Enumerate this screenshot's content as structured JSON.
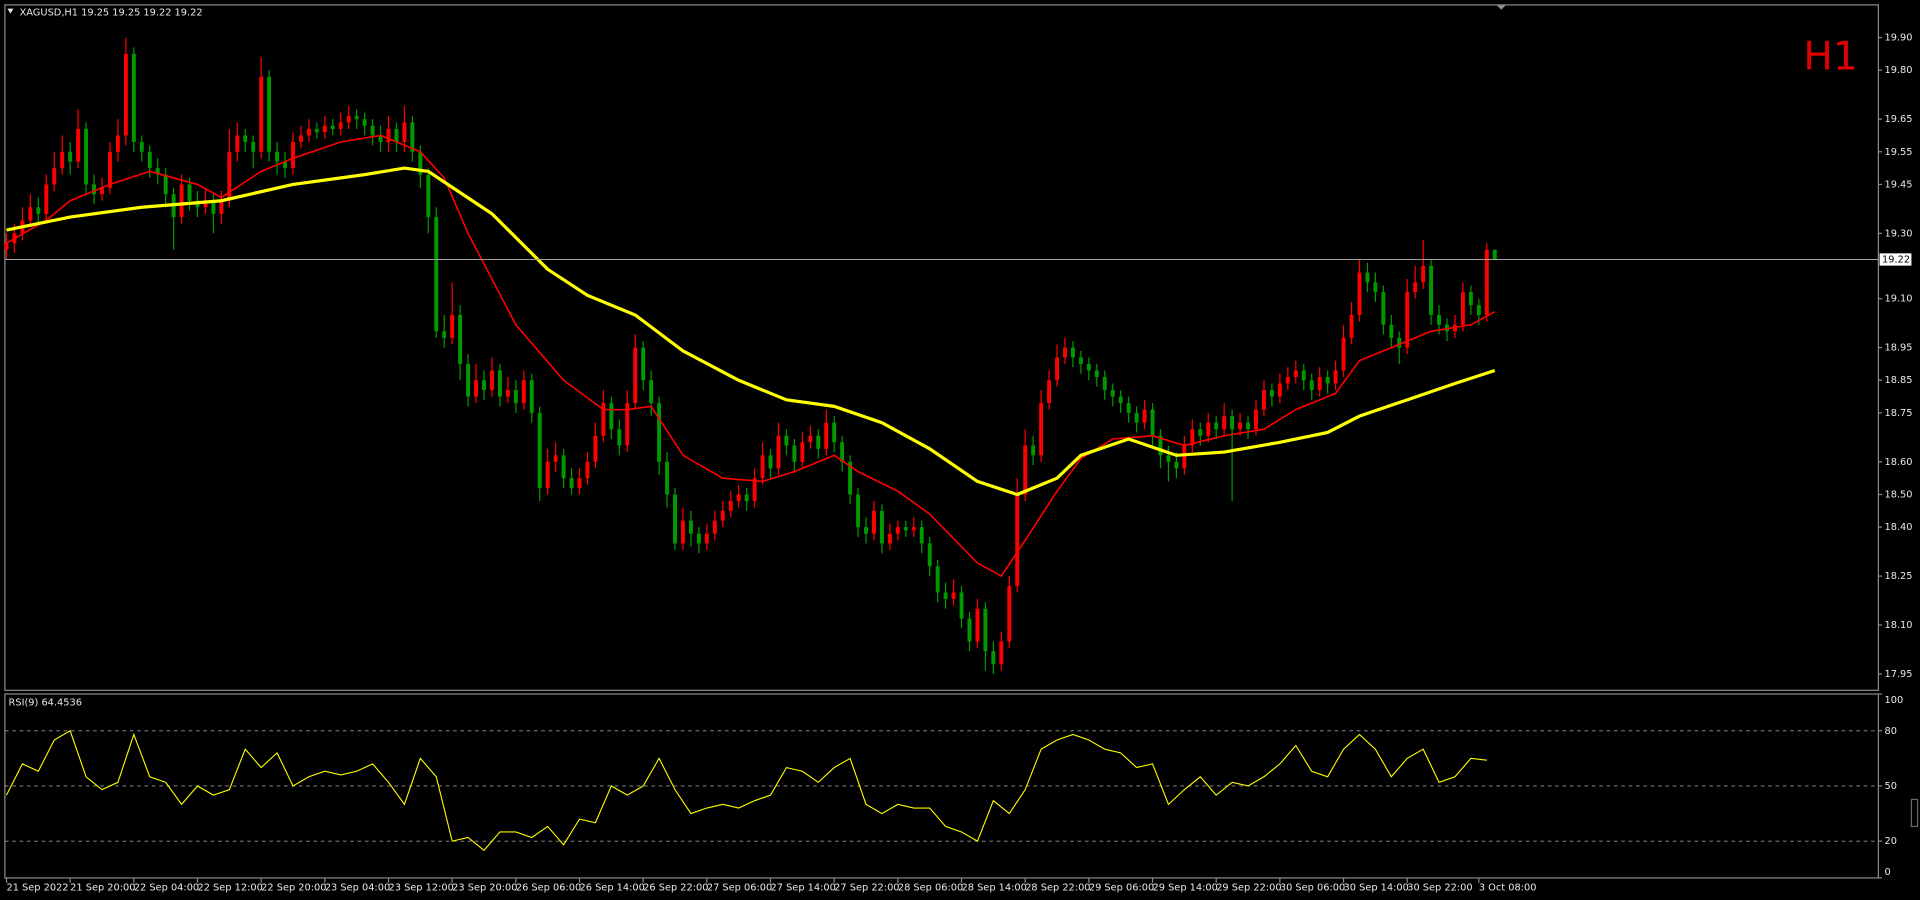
{
  "chart_data": {
    "type": "candlestick",
    "title": "XAGUSD,H1  19.25 19.25 19.22 19.22",
    "timeframe": "H1",
    "up_color": "#ff0000",
    "down_color": "#009a00",
    "ylim": [
      17.9,
      20.0
    ],
    "yticks": [
      {
        "value": 19.9,
        "label": "19.90"
      },
      {
        "value": 19.8,
        "label": "19.80"
      },
      19.65,
      19.55,
      19.45,
      {
        "value": 19.3,
        "label": "19.30"
      },
      {
        "value": 19.1,
        "label": "19.10"
      },
      18.95,
      18.85,
      18.75,
      {
        "value": 18.6,
        "label": "18.60"
      },
      {
        "value": 18.5,
        "label": "18.50"
      },
      {
        "value": 18.4,
        "label": "18.40"
      },
      18.25,
      {
        "value": 18.1,
        "label": "18.10"
      },
      17.95
    ],
    "xlim": [
      -0.2,
      235.2
    ],
    "xticks": [
      {
        "value": 0,
        "label": "21 Sep 2022"
      },
      {
        "value": 8,
        "label": "21 Sep 20:00"
      },
      {
        "value": 16,
        "label": "22 Sep 04:00"
      },
      {
        "value": 24,
        "label": "22 Sep 12:00"
      },
      {
        "value": 32,
        "label": "22 Sep 20:00"
      },
      {
        "value": 40,
        "label": "23 Sep 04:00"
      },
      {
        "value": 48,
        "label": "23 Sep 12:00"
      },
      {
        "value": 56,
        "label": "23 Sep 20:00"
      },
      {
        "value": 64,
        "label": "26 Sep 06:00"
      },
      {
        "value": 72,
        "label": "26 Sep 14:00"
      },
      {
        "value": 80,
        "label": "26 Sep 22:00"
      },
      {
        "value": 88,
        "label": "27 Sep 06:00"
      },
      {
        "value": 96,
        "label": "27 Sep 14:00"
      },
      {
        "value": 104,
        "label": "27 Sep 22:00"
      },
      {
        "value": 112,
        "label": "28 Sep 06:00"
      },
      {
        "value": 120,
        "label": "28 Sep 14:00"
      },
      {
        "value": 128,
        "label": "28 Sep 22:00"
      },
      {
        "value": 136,
        "label": "29 Sep 06:00"
      },
      {
        "value": 144,
        "label": "29 Sep 14:00"
      },
      {
        "value": 152,
        "label": "29 Sep 22:00"
      },
      {
        "value": 160,
        "label": "30 Sep 06:00"
      },
      {
        "value": 168,
        "label": "30 Sep 14:00"
      },
      {
        "value": 176,
        "label": "30 Sep 22:00"
      },
      {
        "value": 185,
        "label": "3 Oct 08:00"
      }
    ],
    "last_price": 19.22,
    "open": [
      19.25,
      19.27,
      19.3,
      19.34,
      19.38,
      19.36,
      19.45,
      19.5,
      19.55,
      19.52,
      19.62,
      19.45,
      19.42,
      19.44,
      19.55,
      19.6,
      19.85,
      19.58,
      19.55,
      19.5,
      19.48,
      19.42,
      19.35,
      19.45,
      19.4,
      19.38,
      19.4,
      19.36,
      19.4,
      19.55,
      19.6,
      19.58,
      19.55,
      19.78,
      19.55,
      19.52,
      19.5,
      19.58,
      19.6,
      19.62,
      19.61,
      19.63,
      19.62,
      19.64,
      19.66,
      19.65,
      19.63,
      19.6,
      19.58,
      19.62,
      19.58,
      19.64,
      19.55,
      19.48,
      19.35,
      19.0,
      18.98,
      19.05,
      18.9,
      18.8,
      18.85,
      18.82,
      18.88,
      18.8,
      18.82,
      18.78,
      18.85,
      18.75,
      18.52,
      18.6,
      18.62,
      18.55,
      18.52,
      18.55,
      18.6,
      18.68,
      18.78,
      18.7,
      18.65,
      18.78,
      18.95,
      18.85,
      18.78,
      18.6,
      18.5,
      18.35,
      18.42,
      18.38,
      18.35,
      18.38,
      18.42,
      18.45,
      18.48,
      18.5,
      18.48,
      18.55,
      18.62,
      18.58,
      18.68,
      18.65,
      18.6,
      18.66,
      18.68,
      18.64,
      18.72,
      18.66,
      18.6,
      18.5,
      18.4,
      18.38,
      18.45,
      18.35,
      18.38,
      18.4,
      18.39,
      18.4,
      18.35,
      18.28,
      18.2,
      18.18,
      18.2,
      18.12,
      18.05,
      18.15,
      18.02,
      17.98,
      18.05,
      18.22,
      18.5,
      18.65,
      18.62,
      18.78,
      18.85,
      18.92,
      18.95,
      18.92,
      18.9,
      18.88,
      18.86,
      18.82,
      18.8,
      18.78,
      18.75,
      18.72,
      18.76,
      18.68,
      18.62,
      18.6,
      18.58,
      18.65,
      18.7,
      18.68,
      18.72,
      18.7,
      18.74,
      18.7,
      18.72,
      18.7,
      18.76,
      18.82,
      18.8,
      18.84,
      18.86,
      18.88,
      18.85,
      18.82,
      18.86,
      18.84,
      18.88,
      18.98,
      19.05,
      19.18,
      19.15,
      19.12,
      19.02,
      18.98,
      18.95,
      19.12,
      19.15,
      19.2,
      19.05,
      19.02,
      19.0,
      19.02,
      19.12,
      19.08,
      19.05,
      19.25
    ],
    "high": [
      19.3,
      19.33,
      19.38,
      19.42,
      19.41,
      19.48,
      19.55,
      19.6,
      19.58,
      19.68,
      19.64,
      19.48,
      19.47,
      19.58,
      19.65,
      19.9,
      19.87,
      19.6,
      19.57,
      19.53,
      19.5,
      19.44,
      19.48,
      19.47,
      19.43,
      19.44,
      19.42,
      19.43,
      19.62,
      19.64,
      19.62,
      19.6,
      19.84,
      19.8,
      19.58,
      19.55,
      19.61,
      19.63,
      19.65,
      19.64,
      19.66,
      19.65,
      19.67,
      19.69,
      19.68,
      19.67,
      19.65,
      19.63,
      19.66,
      19.64,
      19.69,
      19.66,
      19.57,
      19.5,
      19.38,
      19.05,
      19.15,
      19.08,
      18.93,
      18.9,
      18.88,
      18.92,
      18.9,
      18.86,
      18.85,
      18.88,
      18.87,
      18.77,
      18.64,
      18.66,
      18.64,
      18.58,
      18.58,
      18.63,
      18.72,
      18.82,
      18.8,
      18.73,
      18.82,
      18.99,
      18.97,
      18.88,
      18.8,
      18.63,
      18.52,
      18.46,
      18.45,
      18.4,
      18.41,
      18.45,
      18.48,
      18.51,
      18.53,
      18.52,
      18.58,
      18.66,
      18.64,
      18.72,
      18.7,
      18.67,
      18.69,
      18.71,
      18.7,
      18.76,
      18.74,
      18.68,
      18.62,
      18.52,
      18.43,
      18.48,
      18.47,
      18.41,
      18.42,
      18.42,
      18.43,
      18.42,
      18.37,
      18.3,
      18.23,
      18.24,
      18.22,
      18.14,
      18.18,
      18.17,
      18.05,
      18.08,
      18.25,
      18.55,
      18.7,
      18.68,
      18.82,
      18.88,
      18.96,
      18.98,
      18.97,
      18.94,
      18.92,
      18.9,
      18.88,
      18.84,
      18.82,
      18.8,
      18.77,
      18.79,
      18.78,
      18.7,
      18.65,
      18.63,
      18.68,
      18.73,
      18.72,
      18.75,
      18.74,
      18.78,
      18.76,
      18.75,
      18.74,
      18.79,
      18.85,
      18.84,
      18.87,
      18.89,
      18.91,
      18.9,
      18.87,
      18.89,
      18.88,
      18.91,
      19.02,
      19.09,
      19.22,
      19.21,
      19.18,
      19.14,
      19.05,
      19.0,
      19.16,
      19.2,
      19.28,
      19.22,
      19.08,
      19.04,
      19.05,
      19.15,
      19.14,
      19.1,
      19.27,
      19.25
    ],
    "low": [
      19.22,
      19.24,
      19.28,
      19.32,
      19.33,
      19.34,
      19.43,
      19.48,
      19.48,
      19.5,
      19.42,
      19.39,
      19.4,
      19.42,
      19.52,
      19.57,
      19.55,
      19.52,
      19.47,
      19.45,
      19.38,
      19.25,
      19.33,
      19.37,
      19.35,
      19.36,
      19.3,
      19.33,
      19.38,
      19.52,
      19.55,
      19.5,
      19.53,
      19.52,
      19.48,
      19.47,
      19.48,
      19.56,
      19.58,
      19.59,
      19.59,
      19.6,
      19.6,
      19.62,
      19.62,
      19.6,
      19.57,
      19.55,
      19.55,
      19.55,
      19.55,
      19.52,
      19.44,
      19.3,
      18.98,
      18.95,
      18.96,
      18.85,
      18.77,
      18.78,
      18.79,
      18.8,
      18.77,
      18.78,
      18.75,
      18.76,
      18.72,
      18.48,
      18.5,
      18.57,
      18.52,
      18.5,
      18.5,
      18.53,
      18.58,
      18.66,
      18.67,
      18.62,
      18.63,
      18.76,
      18.82,
      18.74,
      18.56,
      18.46,
      18.33,
      18.33,
      18.34,
      18.32,
      18.33,
      18.36,
      18.4,
      18.43,
      18.46,
      18.45,
      18.46,
      18.53,
      18.55,
      18.56,
      18.62,
      18.57,
      18.58,
      18.64,
      18.61,
      18.62,
      18.63,
      18.57,
      18.47,
      18.37,
      18.35,
      18.36,
      18.32,
      18.33,
      18.36,
      18.37,
      18.37,
      18.32,
      18.25,
      18.17,
      18.15,
      18.16,
      18.09,
      18.02,
      18.03,
      17.96,
      17.95,
      17.96,
      18.03,
      18.2,
      18.48,
      18.59,
      18.6,
      18.76,
      18.83,
      18.9,
      18.89,
      18.87,
      18.85,
      18.83,
      18.79,
      18.77,
      18.75,
      18.72,
      18.69,
      18.7,
      18.65,
      18.58,
      18.54,
      18.55,
      18.56,
      18.63,
      18.65,
      18.66,
      18.67,
      18.68,
      18.48,
      18.68,
      18.67,
      18.68,
      18.74,
      18.77,
      18.78,
      18.82,
      18.84,
      18.82,
      18.79,
      18.8,
      18.81,
      18.82,
      18.86,
      18.96,
      19.03,
      19.12,
      19.09,
      18.99,
      18.95,
      18.9,
      18.93,
      19.1,
      19.13,
      19.02,
      18.99,
      18.97,
      18.98,
      19.0,
      19.05,
      19.02,
      19.03,
      19.22
    ],
    "close": [
      19.27,
      19.3,
      19.34,
      19.38,
      19.36,
      19.45,
      19.5,
      19.55,
      19.52,
      19.62,
      19.45,
      19.42,
      19.44,
      19.55,
      19.6,
      19.85,
      19.58,
      19.55,
      19.5,
      19.48,
      19.42,
      19.35,
      19.45,
      19.4,
      19.38,
      19.4,
      19.36,
      19.4,
      19.55,
      19.6,
      19.58,
      19.55,
      19.78,
      19.55,
      19.52,
      19.5,
      19.58,
      19.6,
      19.62,
      19.61,
      19.63,
      19.62,
      19.64,
      19.66,
      19.65,
      19.63,
      19.6,
      19.58,
      19.62,
      19.58,
      19.64,
      19.55,
      19.48,
      19.35,
      19.0,
      18.98,
      19.05,
      18.9,
      18.8,
      18.85,
      18.82,
      18.88,
      18.8,
      18.82,
      18.78,
      18.85,
      18.75,
      18.52,
      18.6,
      18.62,
      18.55,
      18.52,
      18.55,
      18.6,
      18.68,
      18.78,
      18.7,
      18.65,
      18.78,
      18.95,
      18.85,
      18.78,
      18.6,
      18.5,
      18.35,
      18.42,
      18.38,
      18.35,
      18.38,
      18.42,
      18.45,
      18.48,
      18.5,
      18.48,
      18.55,
      18.62,
      18.58,
      18.68,
      18.65,
      18.6,
      18.66,
      18.68,
      18.64,
      18.72,
      18.66,
      18.6,
      18.5,
      18.4,
      18.38,
      18.45,
      18.35,
      18.38,
      18.4,
      18.39,
      18.4,
      18.35,
      18.28,
      18.2,
      18.18,
      18.2,
      18.12,
      18.05,
      18.15,
      18.02,
      17.98,
      18.05,
      18.22,
      18.5,
      18.65,
      18.62,
      18.78,
      18.85,
      18.92,
      18.95,
      18.92,
      18.9,
      18.88,
      18.86,
      18.82,
      18.8,
      18.78,
      18.75,
      18.72,
      18.76,
      18.68,
      18.62,
      18.6,
      18.58,
      18.65,
      18.7,
      18.68,
      18.72,
      18.7,
      18.74,
      18.7,
      18.72,
      18.7,
      18.76,
      18.82,
      18.8,
      18.84,
      18.86,
      18.88,
      18.85,
      18.82,
      18.86,
      18.84,
      18.88,
      18.98,
      19.05,
      19.18,
      19.15,
      19.12,
      19.02,
      18.98,
      18.95,
      19.12,
      19.15,
      19.2,
      19.05,
      19.02,
      19.0,
      19.02,
      19.12,
      19.08,
      19.05,
      19.25,
      19.22
    ],
    "overlays": [
      {
        "color": "#ff0000",
        "width": 1.3,
        "x": [
          0,
          5,
          8,
          13,
          18,
          24,
          27,
          32,
          36,
          42,
          47,
          52,
          55,
          58,
          64,
          70,
          75,
          78,
          81,
          85,
          90,
          95,
          99,
          104,
          107,
          112,
          116,
          122,
          125,
          128,
          132,
          135,
          139,
          144,
          148,
          153,
          158,
          162,
          167,
          170,
          175,
          179,
          184,
          187
        ],
        "values": [
          19.27,
          19.34,
          19.4,
          19.45,
          19.49,
          19.45,
          19.41,
          19.49,
          19.53,
          19.58,
          19.6,
          19.55,
          19.47,
          19.3,
          19.02,
          18.85,
          18.76,
          18.76,
          18.77,
          18.62,
          18.55,
          18.54,
          18.57,
          18.62,
          18.57,
          18.51,
          18.44,
          18.29,
          18.25,
          18.36,
          18.51,
          18.61,
          18.67,
          18.68,
          18.65,
          18.68,
          18.7,
          18.76,
          18.81,
          18.91,
          18.96,
          19.0,
          19.02,
          19.06
        ]
      },
      {
        "color": "#ffff00",
        "width": 2.6,
        "x": [
          0,
          8,
          17,
          27,
          36,
          45,
          50,
          53,
          61,
          68,
          73,
          79,
          85,
          92,
          98,
          104,
          110,
          116,
          122,
          127,
          132,
          135,
          141,
          147,
          153,
          160,
          166,
          170,
          176,
          182,
          187
        ],
        "values": [
          19.31,
          19.35,
          19.38,
          19.4,
          19.45,
          19.48,
          19.5,
          19.49,
          19.36,
          19.19,
          19.11,
          19.05,
          18.94,
          18.85,
          18.79,
          18.77,
          18.72,
          18.64,
          18.54,
          18.5,
          18.55,
          18.62,
          18.67,
          18.62,
          18.63,
          18.66,
          18.69,
          18.74,
          18.79,
          18.84,
          18.88
        ]
      }
    ],
    "rsi": {
      "title": "RSI(9) 64.4536",
      "color": "#ffff00",
      "ylim": [
        0,
        100
      ],
      "yticks": [
        100,
        80,
        50,
        20,
        0
      ],
      "levels": [
        80,
        50,
        20
      ],
      "x": [
        0,
        2,
        4,
        6,
        8,
        10,
        12,
        14,
        16,
        18,
        20,
        22,
        24,
        26,
        28,
        30,
        32,
        34,
        36,
        38,
        40,
        42,
        44,
        46,
        48,
        50,
        52,
        54,
        56,
        58,
        60,
        62,
        64,
        66,
        68,
        70,
        72,
        74,
        76,
        78,
        80,
        82,
        84,
        86,
        88,
        90,
        92,
        94,
        96,
        98,
        100,
        102,
        104,
        106,
        108,
        110,
        112,
        114,
        116,
        118,
        120,
        122,
        124,
        126,
        128,
        130,
        132,
        134,
        136,
        138,
        140,
        142,
        144,
        146,
        148,
        150,
        152,
        154,
        156,
        158,
        160,
        162,
        164,
        166,
        168,
        170,
        172,
        174,
        176,
        178,
        180,
        182,
        184,
        186
      ],
      "values": [
        45,
        62,
        58,
        75,
        80,
        55,
        48,
        52,
        78,
        55,
        52,
        40,
        50,
        45,
        48,
        70,
        60,
        68,
        50,
        55,
        58,
        56,
        58,
        62,
        52,
        40,
        65,
        55,
        20,
        22,
        15,
        25,
        25,
        22,
        28,
        18,
        32,
        30,
        50,
        45,
        50,
        65,
        48,
        35,
        38,
        40,
        38,
        42,
        45,
        60,
        58,
        52,
        60,
        65,
        40,
        35,
        40,
        38,
        38,
        28,
        25,
        20,
        42,
        35,
        48,
        70,
        75,
        78,
        75,
        70,
        68,
        60,
        62,
        40,
        48,
        55,
        45,
        52,
        50,
        55,
        62,
        72,
        58,
        55,
        70,
        78,
        70,
        55,
        65,
        70,
        52,
        55,
        65,
        64
      ]
    }
  }
}
